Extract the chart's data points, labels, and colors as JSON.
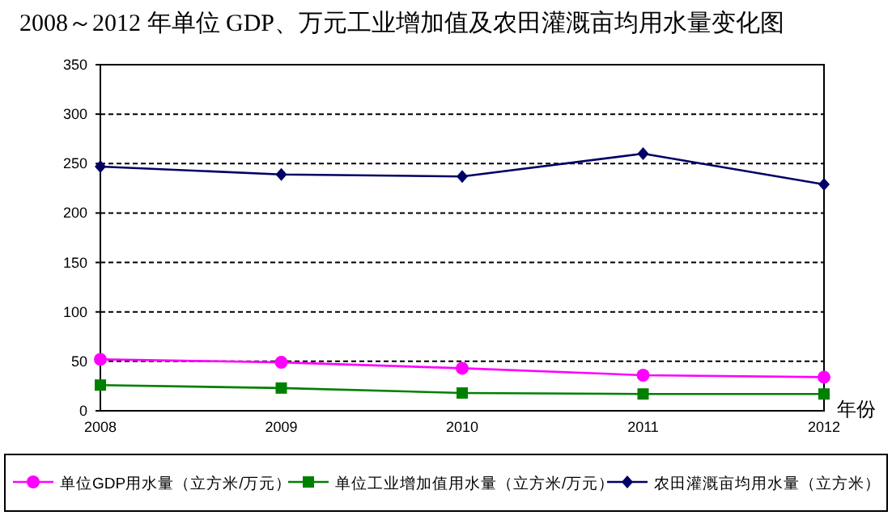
{
  "chart_data": {
    "type": "line",
    "title": "2008～2012 年单位 GDP、万元工业增加值及农田灌溉亩均用水量变化图",
    "xlabel": "年份",
    "categories": [
      "2008",
      "2009",
      "2010",
      "2011",
      "2012"
    ],
    "series": [
      {
        "name": "单位GDP用水量（立方米/万元）",
        "color": "#ff00ff",
        "marker": "circle",
        "values": [
          52,
          49,
          43,
          36,
          34
        ]
      },
      {
        "name": "单位工业增加值用水量（立方米/万元）",
        "color": "#008000",
        "marker": "square",
        "values": [
          26,
          23,
          18,
          17,
          17
        ]
      },
      {
        "name": "农田灌溉亩均用水量（立方米）",
        "color": "#000066",
        "marker": "diamond",
        "values": [
          247,
          239,
          237,
          260,
          229
        ]
      }
    ],
    "ylim": [
      0,
      350
    ],
    "yticks": [
      0,
      50,
      100,
      150,
      200,
      250,
      300,
      350
    ],
    "grid": "y",
    "legend": "bottom"
  }
}
